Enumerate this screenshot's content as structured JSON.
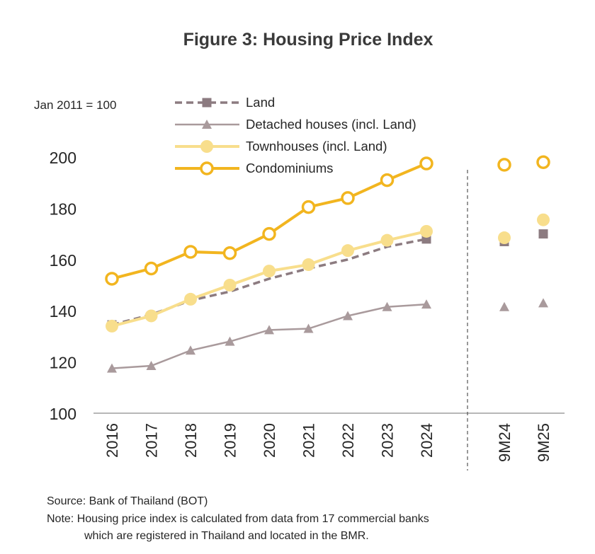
{
  "chart_data": {
    "type": "line",
    "title": "Figure 3: Housing Price Index",
    "ylabel": "Jan 2011 = 100",
    "xlabel": "",
    "ylim": [
      100,
      200
    ],
    "yticks": [
      100,
      120,
      140,
      160,
      180,
      200
    ],
    "categories": [
      "2016",
      "2017",
      "2018",
      "2019",
      "2020",
      "2021",
      "2022",
      "2023",
      "2024"
    ],
    "extra_categories": [
      "9M24",
      "9M25"
    ],
    "grid": false,
    "legend_position": "top-left",
    "series": [
      {
        "name": "Land",
        "style": "dashed-square",
        "color": "#8c7b80",
        "values": [
          134.5,
          138.5,
          144,
          147.5,
          152.5,
          156.5,
          160,
          165,
          168
        ],
        "extra_values": [
          167,
          170
        ]
      },
      {
        "name": "Detached houses (incl. Land)",
        "style": "solid-triangle",
        "color": "#a99a9c",
        "values": [
          117.5,
          118.5,
          124.5,
          128,
          132.5,
          133,
          138,
          141.5,
          142.5
        ],
        "extra_values": [
          141.5,
          143
        ]
      },
      {
        "name": "Townhouses (incl. Land)",
        "style": "solid-filled-circle",
        "color": "#f8de8c",
        "values": [
          134,
          138,
          144.5,
          150,
          155.5,
          158,
          163.5,
          167.5,
          171
        ],
        "extra_values": [
          168.5,
          175.5
        ]
      },
      {
        "name": "Condominiums",
        "style": "solid-hollow-circle",
        "color": "#f2b51f",
        "values": [
          152.5,
          156.5,
          163,
          162.5,
          170,
          180.5,
          184,
          191,
          197.5
        ],
        "extra_values": [
          197,
          198
        ]
      }
    ]
  },
  "footer": {
    "source": "Source: Bank of Thailand (BOT)",
    "note_line1": "Note: Housing price index is calculated from data from 17 commercial banks",
    "note_line2": "which are registered in Thailand and located in the BMR."
  }
}
